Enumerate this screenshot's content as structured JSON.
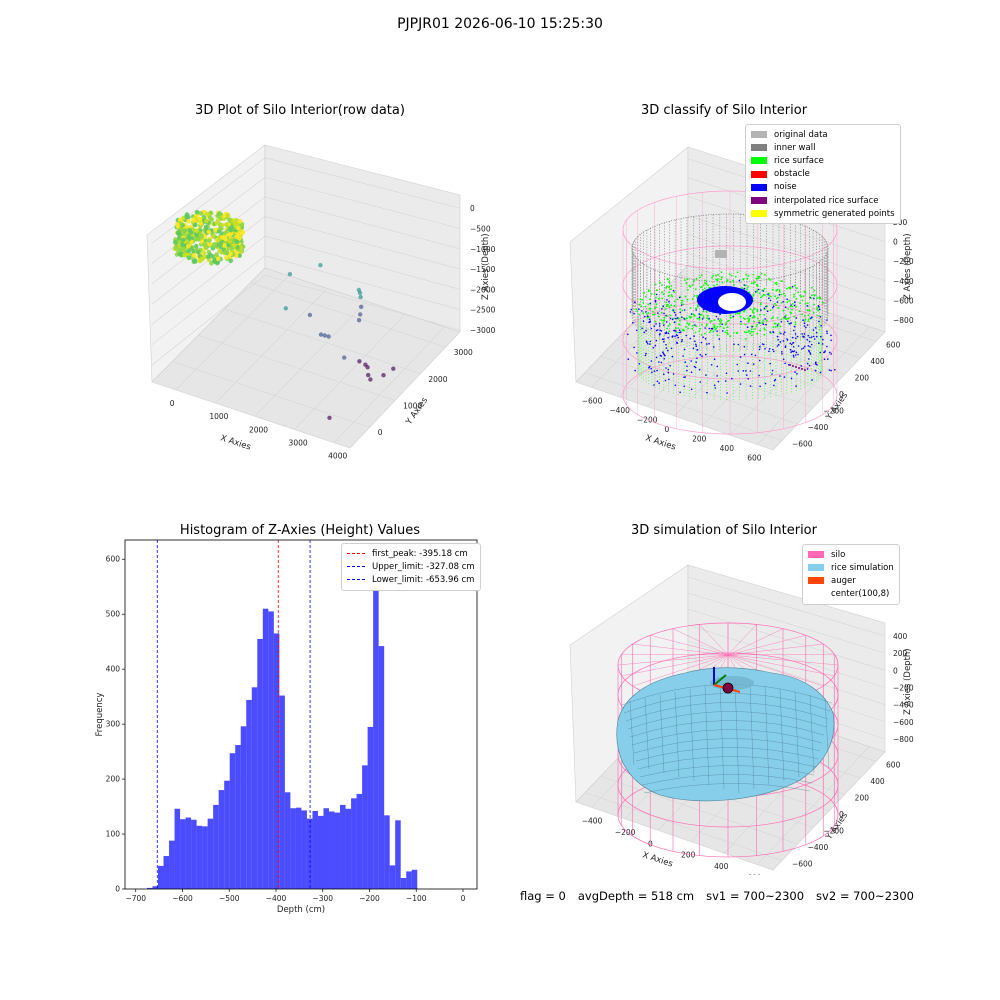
{
  "figure": {
    "suptitle": "PJPJR01 2026-06-10 15:25:30",
    "footer": {
      "flag": "flag = 0",
      "avg_depth": "avgDepth = 518 cm",
      "sv1": "sv1 = 700~2300",
      "sv2": "sv2 = 700~2300"
    }
  },
  "chart_data": [
    {
      "type": "scatter",
      "panel": "3d-raw",
      "title": "3D Plot of Silo Interior(row data)",
      "xlabel": "X Axies",
      "ylabel": "Y Axies",
      "zlabel": "Z Axies (Depth)",
      "x_ticks": [
        "0",
        "1000",
        "2000",
        "3000",
        "4000"
      ],
      "y_ticks": [
        "0",
        "1000",
        "2000",
        "3000"
      ],
      "z_ticks": [
        "0",
        "−500",
        "−1000",
        "−1500",
        "−2000",
        "−2500",
        "−3000"
      ],
      "colormap": [
        "#440154",
        "#3b528b",
        "#21918c",
        "#5ec962",
        "#fde725"
      ],
      "outliers": [
        {
          "x": 1300,
          "y": 2500,
          "z": -1500
        },
        {
          "x": 1700,
          "y": 2900,
          "z": -1450
        },
        {
          "x": 1500,
          "y": 2100,
          "z": -2000
        },
        {
          "x": 1900,
          "y": 2300,
          "z": -2200
        },
        {
          "x": 2500,
          "y": 3000,
          "z": -1900
        },
        {
          "x": 2600,
          "y": 2900,
          "z": -1850
        },
        {
          "x": 2650,
          "y": 2850,
          "z": -1900
        },
        {
          "x": 2700,
          "y": 2800,
          "z": -2100
        },
        {
          "x": 2750,
          "y": 2700,
          "z": -2200
        },
        {
          "x": 2800,
          "y": 2600,
          "z": -2250
        },
        {
          "x": 2300,
          "y": 2100,
          "z": -2400
        },
        {
          "x": 2350,
          "y": 2150,
          "z": -2450
        },
        {
          "x": 2400,
          "y": 2200,
          "z": -2500
        },
        {
          "x": 2900,
          "y": 2000,
          "z": -2700
        },
        {
          "x": 3100,
          "y": 2200,
          "z": -2900
        },
        {
          "x": 3200,
          "y": 2250,
          "z": -3000
        },
        {
          "x": 3250,
          "y": 2250,
          "z": -3050
        },
        {
          "x": 3300,
          "y": 2200,
          "z": -3200
        },
        {
          "x": 3350,
          "y": 2200,
          "z": -3300
        },
        {
          "x": 3500,
          "y": 2400,
          "z": -3300
        },
        {
          "x": 3650,
          "y": 2500,
          "z": -3150
        },
        {
          "x": 3300,
          "y": 1000,
          "z": -3300
        }
      ]
    },
    {
      "type": "scatter",
      "panel": "3d-classify",
      "title": "3D classify of Silo Interior",
      "xlabel": "X Axies",
      "ylabel": "Y Axies",
      "zlabel": "Z Axies (Depth)",
      "x_ticks": [
        "−600",
        "−400",
        "−200",
        "0",
        "200",
        "400",
        "600"
      ],
      "y_ticks": [
        "−600",
        "−400",
        "−200",
        "0",
        "200",
        "400",
        "600"
      ],
      "z_ticks": [
        "200",
        "0",
        "−200",
        "−400",
        "−600",
        "−800"
      ],
      "legend_position": "top-right",
      "legend": [
        {
          "label": "original data",
          "color": "#b3b3b3"
        },
        {
          "label": "inner wall",
          "color": "#808080"
        },
        {
          "label": "rice surface",
          "color": "#00ff00"
        },
        {
          "label": "obstacle",
          "color": "#ff0000"
        },
        {
          "label": "noise",
          "color": "#0000ff"
        },
        {
          "label": "interpolated rice surface",
          "color": "#800080"
        },
        {
          "label": "symmetric generated points",
          "color": "#ffff00"
        }
      ]
    },
    {
      "type": "bar",
      "panel": "histogram",
      "title": "Histogram of Z-Axies (Height) Values",
      "xlabel": "Depth (cm)",
      "ylabel": "Frequency",
      "xlim": [
        -723,
        30
      ],
      "ylim": [
        0,
        635
      ],
      "x_ticks": [
        -700,
        -600,
        -500,
        -400,
        -300,
        -200,
        -100,
        0
      ],
      "y_ticks": [
        0,
        100,
        200,
        300,
        400,
        500,
        600
      ],
      "bin_start": -676,
      "bin_width": 11.8,
      "values": [
        2,
        5,
        42,
        60,
        88,
        146,
        127,
        130,
        126,
        115,
        114,
        128,
        153,
        180,
        197,
        247,
        262,
        296,
        344,
        367,
        455,
        510,
        505,
        465,
        352,
        176,
        147,
        148,
        143,
        128,
        142,
        133,
        147,
        141,
        139,
        153,
        146,
        165,
        173,
        225,
        295,
        600,
        442,
        134,
        43,
        125,
        20,
        32,
        35
      ],
      "bar_color": "#0000ff",
      "legend_position": "top-right",
      "vlines": [
        {
          "label": "first_peak: -395.18 cm",
          "x": -395.18,
          "color": "#ff0000"
        },
        {
          "label": "Upper_limit: -327.08 cm",
          "x": -327.08,
          "color": "#0000ff"
        },
        {
          "label": "Lower_limit: -653.96 cm",
          "x": -653.96,
          "color": "#0000ff"
        }
      ]
    },
    {
      "type": "scatter",
      "panel": "3d-simulation",
      "title": "3D simulation of Silo Interior",
      "xlabel": "X Axies",
      "ylabel": "Y Axies",
      "zlabel": "Z Axies (Depth)",
      "x_ticks": [
        "−400",
        "−200",
        "0",
        "200",
        "400",
        "600"
      ],
      "y_ticks": [
        "−600",
        "−400",
        "−200",
        "0",
        "200",
        "400",
        "600"
      ],
      "z_ticks": [
        "400",
        "200",
        "0",
        "−200",
        "−400",
        "−600",
        "−800"
      ],
      "legend_position": "top-right",
      "legend": [
        {
          "label": "silo",
          "color": "#ff69b4"
        },
        {
          "label": "rice simulation",
          "color": "#87ceeb"
        },
        {
          "label": "auger",
          "color": "#ff4500"
        },
        {
          "label": "center(100,8)",
          "color": "#ffffff"
        }
      ]
    }
  ]
}
